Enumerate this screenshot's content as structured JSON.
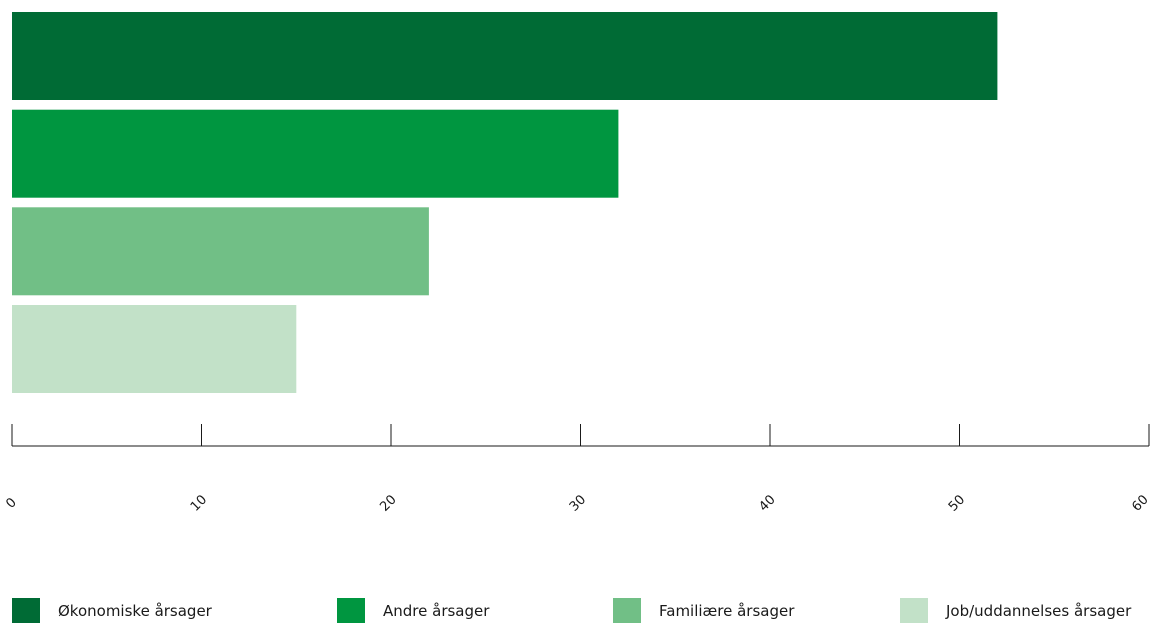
{
  "chart_data": {
    "type": "bar",
    "orientation": "horizontal",
    "categories": [
      "Økonomiske årsager",
      "Andre årsager",
      "Familiære årsager",
      "Job/uddannelses årsager"
    ],
    "values": [
      52,
      32,
      22,
      15
    ],
    "colors": [
      "#006b35",
      "#009640",
      "#71bf86",
      "#c2e1c8"
    ],
    "xlim": [
      0,
      60
    ],
    "xticks": [
      "0",
      "10",
      "20",
      "30",
      "40",
      "50",
      "60"
    ],
    "legend_position": "bottom",
    "grid": false
  }
}
